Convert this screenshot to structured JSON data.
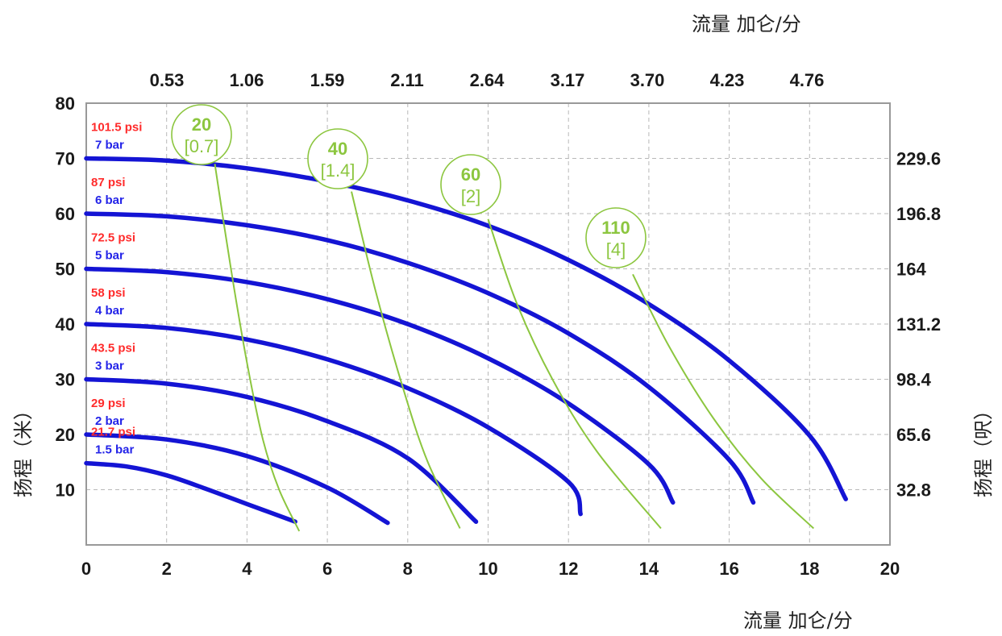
{
  "chart_data": {
    "type": "line",
    "x_bottom": {
      "label": "流量 加仑/分",
      "ticks": [
        "0",
        "2",
        "4",
        "6",
        "8",
        "10",
        "12",
        "14",
        "16",
        "18",
        "20"
      ],
      "range": [
        0,
        20
      ]
    },
    "x_top": {
      "label": "流量 加仑/分",
      "ticks": [
        "0.53",
        "1.06",
        "1.59",
        "2.11",
        "2.64",
        "3.17",
        "3.70",
        "4.23",
        "4.76"
      ]
    },
    "y_left": {
      "label": "扬程（米）",
      "ticks": [
        "10",
        "20",
        "30",
        "40",
        "50",
        "60",
        "70",
        "80"
      ],
      "range": [
        0,
        80
      ]
    },
    "y_right": {
      "label": "扬程（呎）",
      "ticks": [
        "32.8",
        "65.6",
        "98.4",
        "131.2",
        "164",
        "196.8",
        "229.6"
      ]
    },
    "grid": true,
    "pressure_curves": [
      {
        "psi": "101.5 psi",
        "bar": "7 bar",
        "color": "#1414d4",
        "x": [
          0,
          2,
          4,
          6,
          8,
          10,
          12,
          14,
          16,
          18,
          18.9
        ],
        "y": [
          70,
          69.6,
          68.2,
          65.8,
          62.4,
          57.8,
          51.6,
          43.6,
          33.4,
          19.8,
          8.3
        ]
      },
      {
        "psi": "87 psi",
        "bar": "6 bar",
        "color": "#1414d4",
        "x": [
          0,
          2,
          4,
          6,
          8,
          10,
          12,
          14,
          16,
          16.6
        ],
        "y": [
          60,
          59.5,
          57.9,
          55.2,
          51.1,
          45.6,
          38.3,
          28.6,
          15.4,
          7.7
        ]
      },
      {
        "psi": "72.5 psi",
        "bar": "5 bar",
        "color": "#1414d4",
        "x": [
          0,
          2,
          4,
          6,
          8,
          10,
          12,
          14,
          14.6
        ],
        "y": [
          50,
          49.4,
          47.6,
          44.5,
          40,
          33.8,
          25.6,
          14.6,
          7.7
        ]
      },
      {
        "psi": "58 psi",
        "bar": "4 bar",
        "color": "#1414d4",
        "x": [
          0,
          2,
          4,
          6,
          8,
          10,
          12,
          12.3
        ],
        "y": [
          40,
          39.3,
          37.2,
          33.6,
          28.4,
          21.3,
          11.4,
          5.6
        ]
      },
      {
        "psi": "43.5 psi",
        "bar": "3 bar",
        "color": "#1414d4",
        "x": [
          0,
          2,
          4,
          6,
          8,
          9.7
        ],
        "y": [
          30,
          29.2,
          26.8,
          22.4,
          15.7,
          4.2
        ]
      },
      {
        "psi": "29 psi",
        "bar": "2 bar",
        "color": "#1414d4",
        "x": [
          0,
          2,
          4,
          6,
          7.5
        ],
        "y": [
          20,
          19.1,
          16.1,
          10.4,
          4.0
        ]
      },
      {
        "psi": "21.7 psi",
        "bar": "1.5 bar",
        "color": "#1414d4",
        "x": [
          0,
          1,
          2,
          3,
          4,
          5.2
        ],
        "y": [
          14.8,
          14.2,
          12.6,
          10.1,
          7.4,
          4.2
        ]
      }
    ],
    "air_consumption_curves": [
      {
        "top": "20",
        "bottom": "[0.7]",
        "color": "#8cc63f",
        "x": [
          3.2,
          3.6,
          4.0,
          4.4,
          4.8,
          5.3
        ],
        "y": [
          69,
          50,
          33,
          19,
          10,
          2.5
        ]
      },
      {
        "top": "40",
        "bottom": "[1.4]",
        "color": "#8cc63f",
        "x": [
          6.6,
          7.2,
          7.9,
          8.5,
          9.3
        ],
        "y": [
          64,
          46,
          28,
          15,
          3
        ]
      },
      {
        "top": "60",
        "bottom": "[2]",
        "color": "#8cc63f",
        "x": [
          10.0,
          10.7,
          11.6,
          12.7,
          14.3
        ],
        "y": [
          59,
          44,
          30,
          17,
          3
        ]
      },
      {
        "top": "110",
        "bottom": "[4]",
        "color": "#8cc63f",
        "x": [
          13.6,
          14.5,
          15.6,
          16.8,
          18.1
        ],
        "y": [
          49,
          36,
          23,
          12,
          3
        ]
      }
    ]
  }
}
